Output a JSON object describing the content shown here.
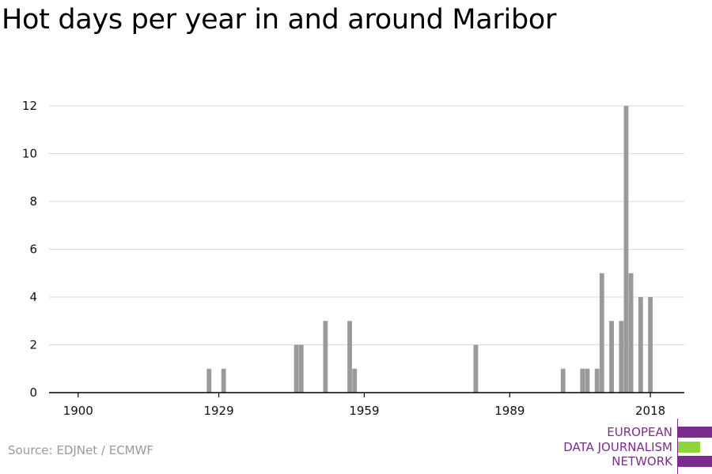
{
  "title": "Hot days per year in and around Maribor",
  "source": "Source: EDJNet / ECMWF",
  "logo": {
    "lines": [
      "EUROPEAN",
      "DATA JOURNALISM",
      "NETWORK"
    ],
    "colors": [
      "#7b2d8e",
      "#8dd639",
      "#7b2d8e"
    ]
  },
  "chart_data": {
    "type": "bar",
    "xlim": [
      1894,
      2025
    ],
    "ylim": [
      0,
      12
    ],
    "x_ticks": [
      1900,
      1929,
      1959,
      1989,
      2018
    ],
    "y_ticks": [
      0,
      2,
      4,
      6,
      8,
      10,
      12
    ],
    "grid": true,
    "bar_color": "#9a9a9a",
    "x": [
      1927,
      1930,
      1945,
      1946,
      1951,
      1956,
      1957,
      1982,
      2000,
      2004,
      2005,
      2007,
      2008,
      2010,
      2012,
      2013,
      2014,
      2016,
      2018
    ],
    "values": [
      1,
      1,
      2,
      2,
      3,
      3,
      1,
      2,
      1,
      1,
      1,
      1,
      5,
      3,
      3,
      12,
      5,
      4,
      4
    ]
  }
}
